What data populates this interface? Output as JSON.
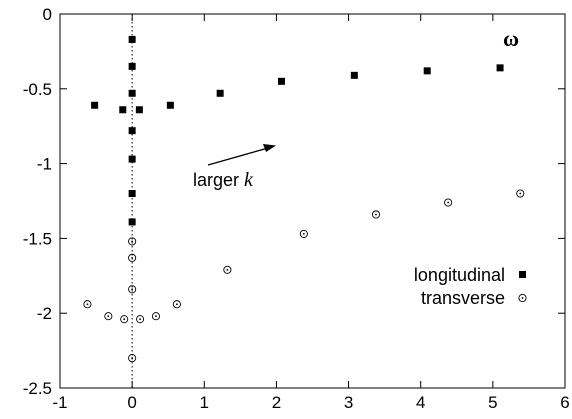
{
  "chart_data": {
    "type": "scatter",
    "title": "",
    "xlabel": "",
    "ylabel": "",
    "xlim": [
      -1,
      6
    ],
    "ylim": [
      -2.5,
      0
    ],
    "x_ticks": [
      -1,
      0,
      1,
      2,
      3,
      4,
      5,
      6
    ],
    "y_ticks": [
      0,
      -0.5,
      -1,
      -1.5,
      -2,
      -2.5
    ],
    "x_tick_labels": [
      "-1",
      "0",
      "1",
      "2",
      "3",
      "4",
      "5",
      "6"
    ],
    "y_tick_labels": [
      "0",
      "-0.5",
      "-1",
      "-1.5",
      "-2",
      "-2.5"
    ],
    "grid": false,
    "vertical_reference_line": 0,
    "legend_position": "bottom-right",
    "series": [
      {
        "name": "longitudinal",
        "marker": "filled-square",
        "color": "#000000",
        "points": [
          {
            "x": 0.0,
            "y": -0.17
          },
          {
            "x": 0.0,
            "y": -0.35
          },
          {
            "x": 0.0,
            "y": -0.53
          },
          {
            "x": 0.0,
            "y": -0.78
          },
          {
            "x": 0.0,
            "y": -0.97
          },
          {
            "x": 0.0,
            "y": -1.2
          },
          {
            "x": 0.0,
            "y": -1.39
          },
          {
            "x": -0.52,
            "y": -0.61
          },
          {
            "x": -0.13,
            "y": -0.64
          },
          {
            "x": 0.1,
            "y": -0.64
          },
          {
            "x": 0.53,
            "y": -0.61
          },
          {
            "x": 1.22,
            "y": -0.53
          },
          {
            "x": 2.07,
            "y": -0.45
          },
          {
            "x": 3.08,
            "y": -0.41
          },
          {
            "x": 4.09,
            "y": -0.38
          },
          {
            "x": 5.1,
            "y": -0.36
          }
        ]
      },
      {
        "name": "transverse",
        "marker": "circle-dot",
        "color": "#000000",
        "points": [
          {
            "x": 0.0,
            "y": -1.52
          },
          {
            "x": 0.0,
            "y": -1.63
          },
          {
            "x": 0.0,
            "y": -1.84
          },
          {
            "x": 0.0,
            "y": -2.3
          },
          {
            "x": -0.62,
            "y": -1.94
          },
          {
            "x": -0.33,
            "y": -2.02
          },
          {
            "x": -0.11,
            "y": -2.04
          },
          {
            "x": 0.11,
            "y": -2.04
          },
          {
            "x": 0.33,
            "y": -2.02
          },
          {
            "x": 0.62,
            "y": -1.94
          },
          {
            "x": 1.32,
            "y": -1.71
          },
          {
            "x": 2.38,
            "y": -1.47
          },
          {
            "x": 3.38,
            "y": -1.34
          },
          {
            "x": 4.38,
            "y": -1.26
          },
          {
            "x": 5.38,
            "y": -1.2
          }
        ]
      }
    ],
    "annotations": {
      "omega_label": "ω",
      "arrow_text": "larger ",
      "arrow_text_italic": "k"
    }
  }
}
